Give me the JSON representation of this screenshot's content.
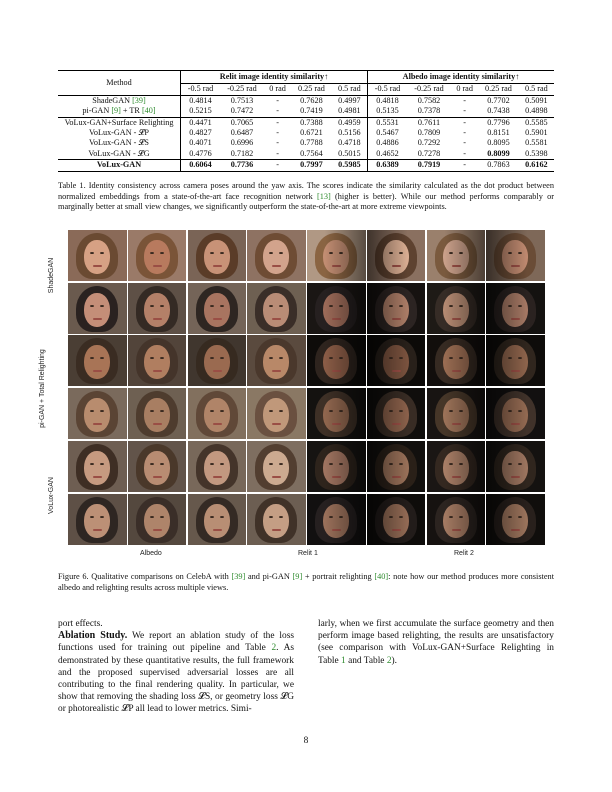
{
  "table": {
    "method_header": "Method",
    "group_relit": "Relit image identity similarity↑",
    "group_albedo": "Albedo image identity similarity↑",
    "angles": [
      "-0.5 rad",
      "-0.25 rad",
      "0 rad",
      "0.25 rad",
      "0.5 rad"
    ],
    "rows": [
      {
        "method": "ShadeGAN ",
        "ref": "[39]",
        "values": [
          "0.4814",
          "0.7513",
          "-",
          "0.7628",
          "0.4997",
          "0.4818",
          "0.7582",
          "-",
          "0.7702",
          "0.5091"
        ]
      },
      {
        "method": "pi-GAN ",
        "ref": "[9]",
        "suffix": " + TR ",
        "ref2": "[40]",
        "values": [
          "0.5215",
          "0.7472",
          "-",
          "0.7419",
          "0.4981",
          "0.5135",
          "0.7378",
          "-",
          "0.7438",
          "0.4898"
        ]
      },
      {
        "method": "VoLux-GAN+Surface Relighting",
        "values": [
          "0.4471",
          "0.7065",
          "-",
          "0.7388",
          "0.4959",
          "0.5531",
          "0.7611",
          "-",
          "0.7796",
          "0.5585"
        ]
      },
      {
        "method": "VoLux-GAN - 𝓛P",
        "values": [
          "0.4827",
          "0.6487",
          "-",
          "0.6721",
          "0.5156",
          "0.5467",
          "0.7809",
          "-",
          "0.8151",
          "0.5901"
        ]
      },
      {
        "method": "VoLux-GAN - 𝓛S",
        "values": [
          "0.4071",
          "0.6996",
          "-",
          "0.7788",
          "0.4718",
          "0.4886",
          "0.7292",
          "-",
          "0.8095",
          "0.5581"
        ]
      },
      {
        "method": "VoLux-GAN - 𝓛G",
        "values": [
          "0.4776",
          "0.7182",
          "-",
          "0.7564",
          "0.5015",
          "0.4652",
          "0.7278",
          "-",
          "0.8099",
          "0.5398"
        ]
      },
      {
        "method": "VoLux-GAN",
        "values": [
          "0.6064",
          "0.7736",
          "-",
          "0.7997",
          "0.5985",
          "0.6389",
          "0.7919",
          "-",
          "0.7863",
          "0.6162"
        ]
      }
    ]
  },
  "table_caption": {
    "text1": "Table 1. Identity consistency across camera poses around the yaw axis. The scores indicate the similarity calculated as the dot product between normalized embeddings from a state-of-the-art face recognition network ",
    "ref": "[13]",
    "text2": " (higher is better). While our method performs comparably or marginally better at small view changes, we significantly outperform the state-of-the-art at more extreme viewpoints."
  },
  "figure": {
    "row_labels": [
      "ShadeGAN",
      "pi-GAN + Total Relighting",
      "VoLux-GAN"
    ],
    "col_labels": [
      "Albedo",
      "Relit 1",
      "Relit 2"
    ]
  },
  "figure_caption": {
    "t1": "Figure 6. Qualitative comparisons on CelebA with ",
    "r1": "[39]",
    "t2": " and pi-GAN ",
    "r2": "[9]",
    "t3": " + portrait relighting ",
    "r3": "[40]",
    "t4": ": note how our method produces more consistent albedo and relighting results across multiple views."
  },
  "body": {
    "left_first": "port effects.",
    "ablation_heading": "Ablation Study.",
    "left_text1": " We report an ablation study of the loss functions used for training out pipeline and Table ",
    "left_ref1": "2",
    "left_text2": ". As demonstrated by these quantitative results, the full framework and the proposed supervised adversarial losses are all contributing to the final rendering quality. In particular, we show that removing the shading loss 𝓛S, or geometry loss 𝓛G or photorealistic 𝓛P all lead to lower metrics. Simi-",
    "right_text1": "larly, when we first accumulate the surface geometry and then perform image based relighting, the results are unsatisfactory (see comparison with VoLux-GAN+Surface Relighting in Table ",
    "right_ref1": "1",
    "right_text2": " and Table ",
    "right_ref2": "2",
    "right_text3": ")."
  },
  "page_number": "8"
}
